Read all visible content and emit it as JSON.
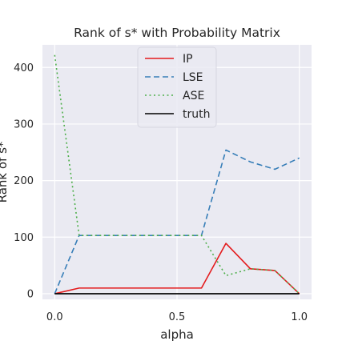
{
  "chart_data": {
    "type": "line",
    "title": "Rank of s* with Probability Matrix",
    "xlabel": "alpha",
    "ylabel": "Rank of s*",
    "xlim": [
      -0.05,
      1.05
    ],
    "ylim": [
      -10,
      440
    ],
    "x_ticks": [
      0.0,
      0.5,
      1.0
    ],
    "x_tick_labels": [
      "0.0",
      "0.5",
      "1.0"
    ],
    "y_ticks": [
      0,
      100,
      200,
      300,
      400
    ],
    "y_tick_labels": [
      "0",
      "100",
      "200",
      "300",
      "400"
    ],
    "grid": true,
    "background": "#eaeaf2",
    "legend_position": "top-center",
    "x": [
      0.0,
      0.1,
      0.2,
      0.3,
      0.4,
      0.5,
      0.6,
      0.7,
      0.8,
      0.9,
      1.0
    ],
    "series": [
      {
        "name": "IP",
        "color": "#e41a1c",
        "dash": "solid",
        "values": [
          0,
          10,
          10,
          10,
          10,
          10,
          10,
          89,
          44,
          41,
          0
        ]
      },
      {
        "name": "LSE",
        "color": "#377eb8",
        "dash": "dashed",
        "values": [
          0,
          103,
          103,
          103,
          103,
          103,
          103,
          254,
          233,
          220,
          240
        ]
      },
      {
        "name": "ASE",
        "color": "#4daf4a",
        "dash": "dotted",
        "values": [
          422,
          103,
          103,
          103,
          103,
          103,
          103,
          32,
          44,
          41,
          0
        ]
      },
      {
        "name": "truth",
        "color": "#000000",
        "dash": "solid",
        "values": [
          0,
          0,
          0,
          0,
          0,
          0,
          0,
          0,
          0,
          0,
          0
        ]
      }
    ]
  }
}
